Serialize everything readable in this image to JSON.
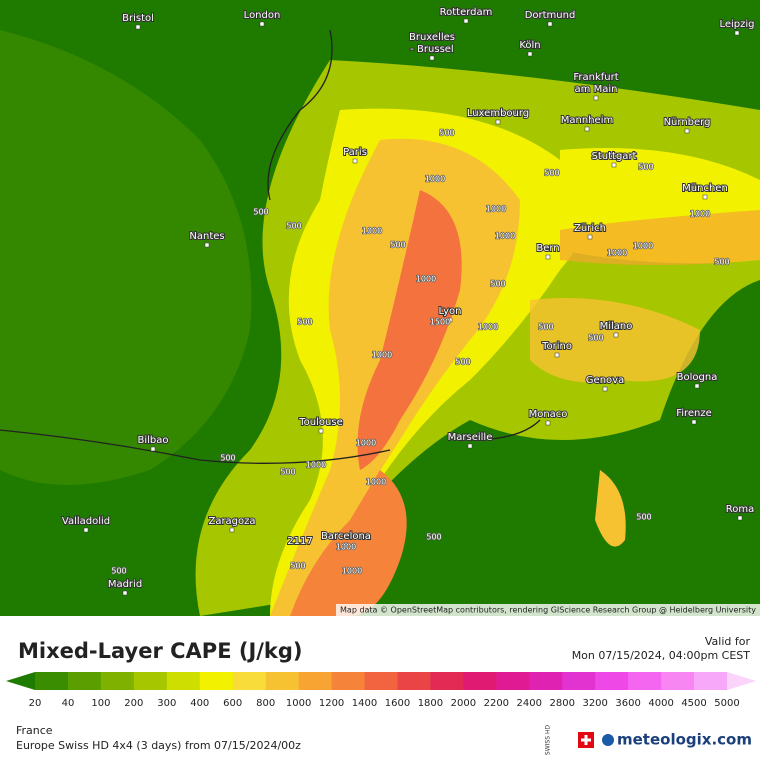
{
  "map": {
    "cities": [
      [
        "Bristol"
      ],
      [
        "London"
      ],
      [
        "Rotterdam"
      ],
      [
        "Dortmund"
      ],
      [
        "Leipzig"
      ],
      [
        "Bruxelles",
        "- Brussel"
      ],
      [
        "Köln"
      ],
      [
        "Frankfurt",
        "am Main"
      ],
      [
        "Luxembourg"
      ],
      [
        "Mannheim"
      ],
      [
        "Nürnberg"
      ],
      [
        "Paris"
      ],
      [
        "Stuttgart"
      ],
      [
        "München"
      ],
      [
        "Nantes"
      ],
      [
        "Zürich"
      ],
      [
        "Bern"
      ],
      [
        "Lyon"
      ],
      [
        "Milano"
      ],
      [
        "Torino"
      ],
      [
        "Genova"
      ],
      [
        "Bologna"
      ],
      [
        "Firenze"
      ],
      [
        "Monaco"
      ],
      [
        "Toulouse"
      ],
      [
        "Marseille"
      ],
      [
        "Bilbao"
      ],
      [
        "Valladolid"
      ],
      [
        "Zaragoza"
      ],
      [
        "Barcelona"
      ],
      [
        "Roma"
      ],
      [
        "Madrid"
      ]
    ],
    "contour_labels": [
      "500",
      "500",
      "1000",
      "500",
      "1000",
      "500",
      "500",
      "1000",
      "500",
      "1000",
      "1000",
      "1000",
      "1500",
      "1000",
      "500",
      "1000",
      "500",
      "500",
      "500",
      "1000",
      "1000",
      "500",
      "500",
      "500",
      "1000",
      "1000",
      "1000",
      "500",
      "500",
      "1000",
      "500",
      "500",
      "500",
      "1000"
    ],
    "max_label": "2117",
    "attribution": "Map data © OpenStreetMap contributors, rendering GIScience Research Group @ Heidelberg University"
  },
  "header": {
    "title": "Mixed-Layer CAPE (J/kg)",
    "valid_label": "Valid for",
    "valid_time": "Mon 07/15/2024, 04:00pm CEST"
  },
  "legend": {
    "labels": [
      "20",
      "40",
      "100",
      "200",
      "300",
      "400",
      "600",
      "800",
      "1000",
      "1200",
      "1400",
      "1600",
      "1800",
      "2000",
      "2200",
      "2400",
      "2800",
      "3200",
      "3600",
      "4000",
      "4500",
      "5000"
    ],
    "colors": [
      "#1f7a00",
      "#3a8c00",
      "#5a9e00",
      "#7fb200",
      "#a6c600",
      "#cede00",
      "#f2f200",
      "#f7dc3a",
      "#f7c232",
      "#f7a432",
      "#f5843a",
      "#f2643f",
      "#ea4447",
      "#e22a55",
      "#e01a72",
      "#e01a92",
      "#e022b2",
      "#e232d0",
      "#ee48e6",
      "#f466f0",
      "#f786f2",
      "#f8a8f8",
      "#fbd4fb"
    ]
  },
  "footer": {
    "region": "France",
    "model": "Europe Swiss HD 4x4 (3 days)  from  07/15/2024/00z",
    "brand": "meteologix.com",
    "badge": "SWISS HD"
  }
}
